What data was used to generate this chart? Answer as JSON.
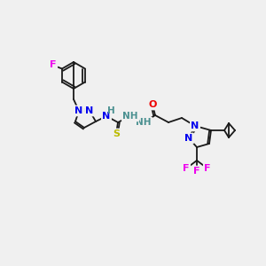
{
  "bg_color": "#f0f0f0",
  "bond_color": "#1a1a1a",
  "atom_colors": {
    "N": "#0000ee",
    "O": "#ee0000",
    "F": "#ee00ee",
    "S": "#bbbb00",
    "C": "#1a1a1a",
    "H": "#4a9090"
  },
  "lw": 1.3,
  "fs": 8.0
}
